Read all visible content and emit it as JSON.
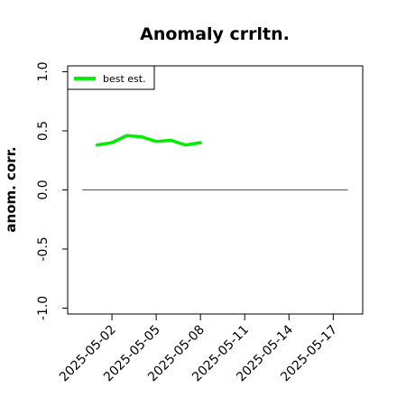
{
  "chart_data": {
    "type": "line",
    "title": "Anomaly crrltn.",
    "xlabel": "",
    "ylabel": "anom. corr.",
    "xlim": [
      "2025-04-29",
      "2025-05-19"
    ],
    "ylim": [
      -1.05,
      1.05
    ],
    "x_ticks": [
      "2025-05-02",
      "2025-05-05",
      "2025-05-08",
      "2025-05-11",
      "2025-05-14",
      "2025-05-17"
    ],
    "y_ticks": [
      "-1.0",
      "-0.5",
      "0.0",
      "0.5",
      "1.0"
    ],
    "y_tick_values": [
      -1.0,
      -0.5,
      0.0,
      0.5,
      1.0
    ],
    "reference_line": {
      "y": 0.0,
      "x_from": "2025-04-30",
      "x_to": "2025-05-18",
      "color": "#555555"
    },
    "legend": {
      "placement": "top-left"
    },
    "series": [
      {
        "name": "best est.",
        "color": "#00ee00",
        "x": [
          "2025-05-01",
          "2025-05-02",
          "2025-05-03",
          "2025-05-04",
          "2025-05-05",
          "2025-05-06",
          "2025-05-07",
          "2025-05-08"
        ],
        "values": [
          0.38,
          0.4,
          0.46,
          0.45,
          0.41,
          0.42,
          0.38,
          0.4
        ]
      }
    ]
  }
}
